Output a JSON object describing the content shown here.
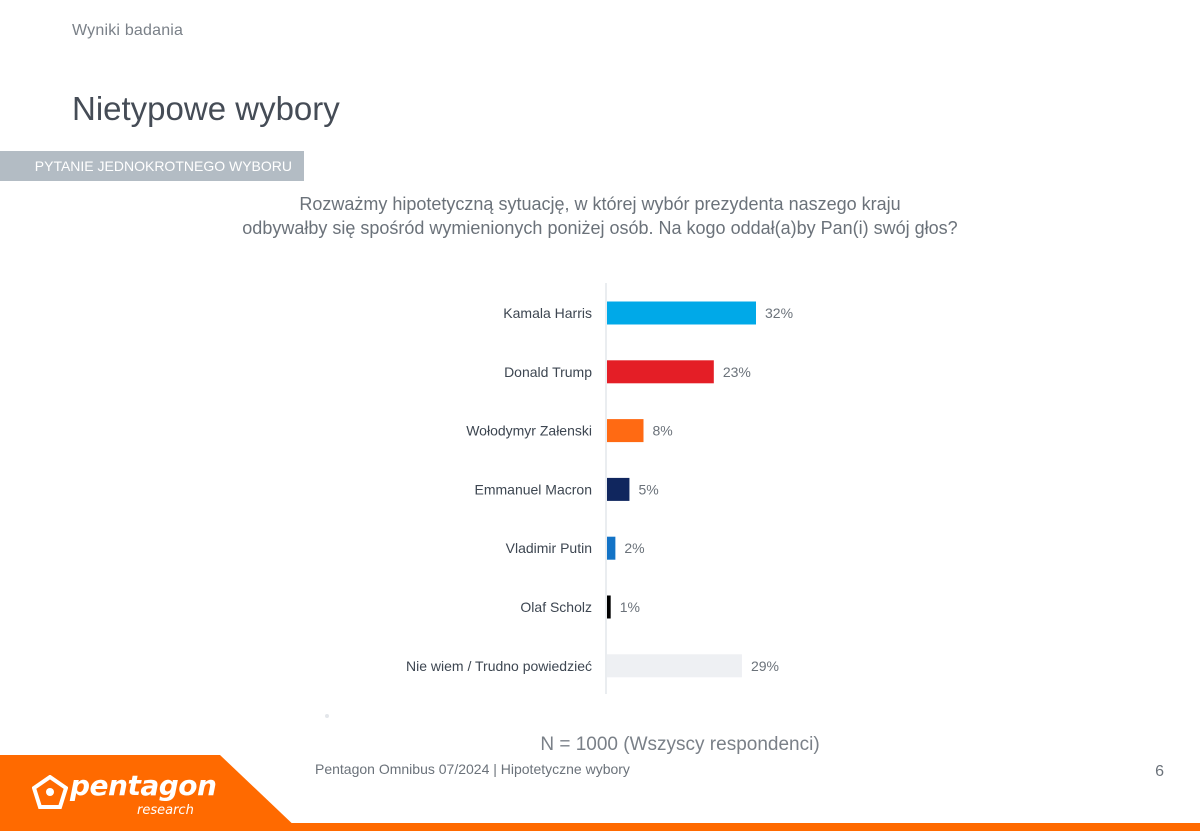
{
  "header": {
    "section_label": "Wyniki badania",
    "title": "Nietypowe wybory"
  },
  "question": {
    "type_label": "PYTANIE JEDNOKROTNEGO WYBORU",
    "text_line1": "Rozważmy hipotetyczną sytuację, w której wybór prezydenta naszego kraju",
    "text_line2": "odbywałby się spośród wymienionych poniżej osób. Na kogo oddał(a)by Pan(i) swój głos?"
  },
  "chart_data": {
    "type": "bar",
    "orientation": "horizontal",
    "categories": [
      "Kamala Harris",
      "Donald Trump",
      "Wołodymyr Załenski",
      "Emmanuel Macron",
      "Vladimir Putin",
      "Olaf Scholz",
      "Nie wiem / Trudno powiedzieć"
    ],
    "values": [
      32,
      23,
      8,
      5,
      2,
      1,
      29
    ],
    "value_labels": [
      "32%",
      "23%",
      "8%",
      "5%",
      "2%",
      "1%",
      "29%"
    ],
    "colors": [
      "#00a9e8",
      "#e41e26",
      "#ff6a13",
      "#10265e",
      "#1373c6",
      "#000000",
      "#eef0f3"
    ],
    "unit": "%",
    "xlim": [
      0,
      100
    ],
    "title": "",
    "xlabel": "",
    "ylabel": ""
  },
  "base_note": "N = 1000 (Wszyscy respondenci)",
  "footer": {
    "brand": "pentagon",
    "brand_sub": "research",
    "caption": "Pentagon Omnibus 07/2024 | Hipotetyczne wybory",
    "page_number": "6"
  },
  "colors": {
    "accent": "#ff6a00",
    "tag_bg": "#b3bcc4"
  }
}
